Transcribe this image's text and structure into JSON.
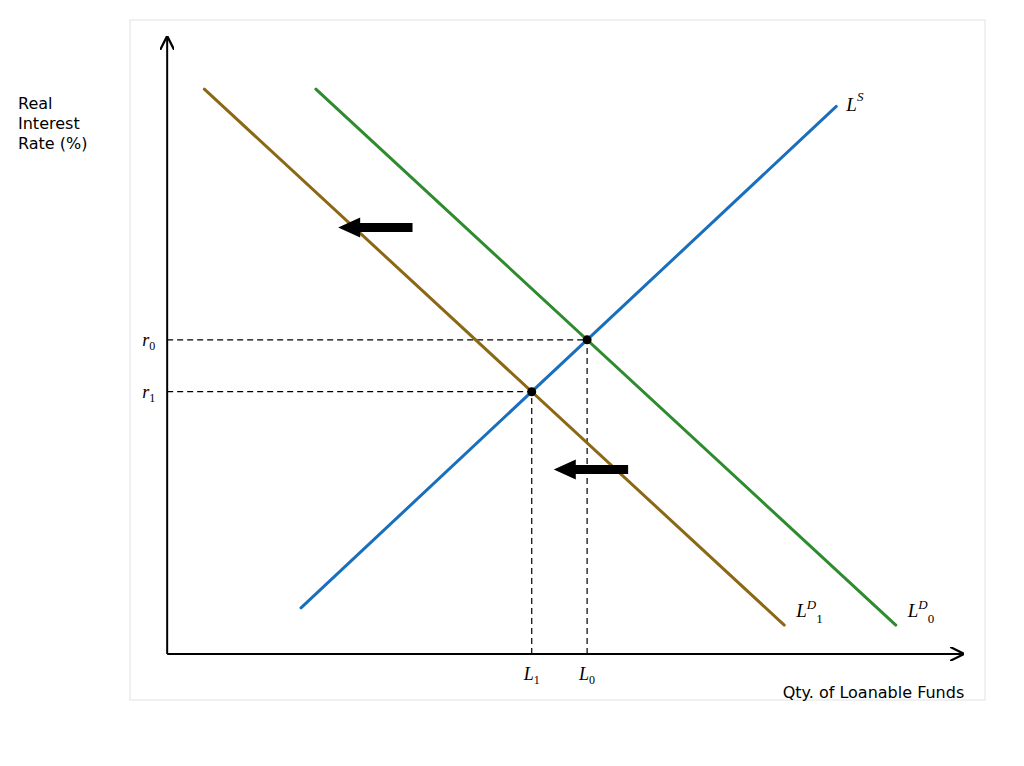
{
  "chart_data": {
    "type": "line",
    "background_color": "#ffffff",
    "xlabel": "Qty. of Loanable Funds",
    "ylabel": "Real\nInterest\nRate (%)",
    "xlim": [
      -0.5,
      11.0
    ],
    "ylim": [
      -0.8,
      11.0
    ],
    "xticks": [],
    "yticks": [],
    "tick_labels": false,
    "grid": false,
    "x_axis_end": 10.7,
    "y_axis_end": 10.7,
    "series": [
      {
        "color": "#1a6fbd",
        "x": [
          1.8,
          9.0
        ],
        "values": [
          0.8,
          9.5
        ],
        "label": "L",
        "label_sup": "S"
      },
      {
        "color": "#2e8b2e",
        "x": [
          2.0,
          9.8
        ],
        "values": [
          9.8,
          0.5
        ],
        "label": "L",
        "label_sup": "D",
        "label_sub": "0"
      },
      {
        "color": "#8b6914",
        "x": [
          0.5,
          8.3
        ],
        "values": [
          9.8,
          0.5
        ],
        "label": "L",
        "label_sup": "D",
        "label_sub": "1"
      }
    ],
    "points": [
      {
        "x": 5.648331,
        "y": 5.450067,
        "x_label": "L",
        "x_label_sub": "0",
        "y_label": "r",
        "y_label_sub": "0"
      },
      {
        "x": 4.903338,
        "y": 4.549867,
        "x_label": "L",
        "x_label_sub": "1",
        "y_label": "r",
        "y_label_sub": "1"
      }
    ],
    "arrows": [
      {
        "x": 3.3,
        "y": 7.4,
        "dx": -1.0
      },
      {
        "x": 6.2,
        "y": 3.2,
        "dx": -1.0
      }
    ]
  }
}
